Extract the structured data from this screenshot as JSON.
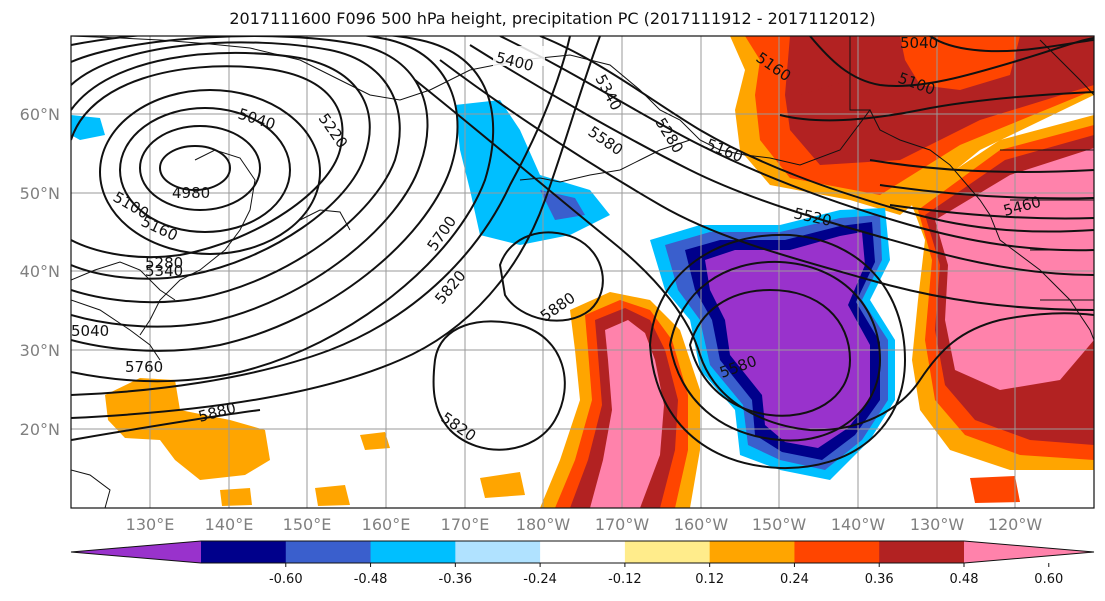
{
  "title": "2017111600 F096 500 hPa height, precipitation PC (2017111912 - 2017112012)",
  "axes": {
    "lat_labels": [
      "60°N",
      "50°N",
      "40°N",
      "30°N",
      "20°N"
    ],
    "lon_labels": [
      "130°E",
      "140°E",
      "150°E",
      "160°E",
      "170°E",
      "180°W",
      "170°W",
      "160°W",
      "150°W",
      "140°W",
      "130°W",
      "120°W"
    ]
  },
  "contour_labels": [
    "5400",
    "5340",
    "5280",
    "5040",
    "5220",
    "5580",
    "5160",
    "5100",
    "5040",
    "4980",
    "5100",
    "5160",
    "5280",
    "5340",
    "5700",
    "5820",
    "5880",
    "5520",
    "5460",
    "5160",
    "5040",
    "5760",
    "5880",
    "5820",
    "5580"
  ],
  "colorbar": {
    "tick_labels": [
      "-0.60",
      "-0.48",
      "-0.36",
      "-0.24",
      "-0.12",
      "0.12",
      "0.24",
      "0.36",
      "0.48",
      "0.60"
    ],
    "colors": [
      "#9932cc",
      "#00008b",
      "#3a5fcd",
      "#00bfff",
      "#b0e2ff",
      "#ffffff",
      "#ffec8b",
      "#ffa500",
      "#ff4500",
      "#b22222",
      "#ff82ab"
    ]
  }
}
